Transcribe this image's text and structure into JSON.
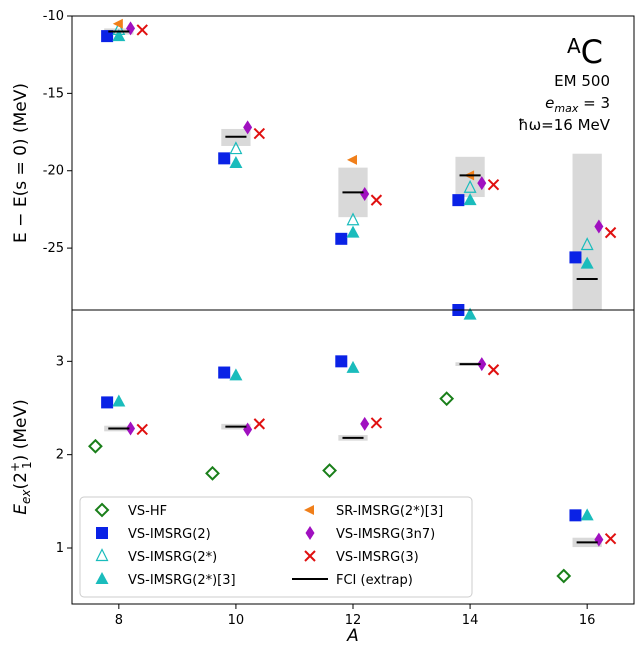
{
  "chart_data": [
    {
      "type": "scatter",
      "panel": "top",
      "ylabel": "E − E(s = 0) (MeV)",
      "ylim": [
        -29.0,
        -10.0
      ],
      "yticks": [
        -10,
        -15,
        -20,
        -25
      ],
      "yticklabels": [
        "-10",
        "-15",
        "-20",
        "-25"
      ],
      "annotation": {
        "nucleus_sup": "A",
        "nucleus": "C",
        "interaction": "EM 500",
        "emax_var": "e",
        "emax_sub": "max",
        "emax_val": " = 3",
        "homega": "ħω=16 MeV"
      },
      "series": [
        {
          "name": "VS-IMSRG(2)",
          "x": [
            7.8,
            9.8,
            11.8,
            13.8,
            15.8
          ],
          "y": [
            -11.3,
            -19.2,
            -24.4,
            -21.9,
            -25.6
          ]
        },
        {
          "name": "VS-IMSRG(2*)",
          "x": [
            8.0,
            10.0,
            12.0,
            14.0,
            16.0
          ],
          "y": [
            -10.9,
            -18.6,
            -23.2,
            -21.1,
            -24.8
          ]
        },
        {
          "name": "VS-IMSRG(2*)[3]",
          "x": [
            8.0,
            10.0,
            12.0,
            14.0,
            16.0
          ],
          "y": [
            -11.3,
            -19.5,
            -24.0,
            -21.9,
            -26.0
          ]
        },
        {
          "name": "SR-IMSRG(2*)[3]",
          "x": [
            8.0,
            12.0,
            14.0
          ],
          "y": [
            -10.5,
            -19.3,
            -20.3
          ]
        },
        {
          "name": "VS-IMSRG(3n7)",
          "x": [
            8.2,
            10.2,
            12.2,
            14.2,
            16.2
          ],
          "y": [
            -10.8,
            -17.2,
            -21.5,
            -20.8,
            -23.6
          ]
        },
        {
          "name": "VS-IMSRG(3)",
          "x": [
            8.4,
            10.4,
            12.4,
            14.4,
            16.4
          ],
          "y": [
            -10.9,
            -17.6,
            -21.9,
            -20.9,
            -24.0
          ]
        },
        {
          "name": "FCI (extrap)",
          "x": [
            8,
            10,
            12,
            14,
            16
          ],
          "y": [
            -11.0,
            -17.8,
            -21.4,
            -20.3,
            -27.0
          ],
          "band_low": [
            -11.2,
            -18.4,
            -23.0,
            -21.7,
            -29.0
          ],
          "band_high": [
            -10.8,
            -17.3,
            -19.8,
            -19.1,
            -18.9
          ]
        }
      ]
    },
    {
      "type": "scatter",
      "panel": "bottom",
      "xlabel": "A",
      "ylabel_main": "E",
      "ylabel_sub": "ex",
      "ylabel_mid": "(2",
      "ylabel_sup": "+",
      "ylabel_sub2": "1",
      "ylabel_tail": ") (MeV)",
      "xlim": [
        7.2,
        16.8
      ],
      "xticks": [
        8,
        10,
        12,
        14,
        16
      ],
      "xticklabels": [
        "8",
        "10",
        "12",
        "14",
        "16"
      ],
      "ylim": [
        0.4,
        3.55
      ],
      "yticks": [
        1,
        2,
        3
      ],
      "yticklabels": [
        "1",
        "2",
        "3"
      ],
      "series": [
        {
          "name": "VS-HF",
          "x": [
            7.6,
            9.6,
            11.6,
            13.6,
            15.6
          ],
          "y": [
            2.09,
            1.8,
            1.83,
            2.6,
            0.7
          ]
        },
        {
          "name": "VS-IMSRG(2)",
          "x": [
            7.8,
            9.8,
            11.8,
            13.8,
            15.8
          ],
          "y": [
            2.56,
            2.88,
            3.0,
            3.55,
            1.35
          ]
        },
        {
          "name": "VS-IMSRG(2*)[3]",
          "x": [
            8.0,
            10.0,
            12.0,
            14.0,
            16.0
          ],
          "y": [
            2.57,
            2.85,
            2.93,
            3.5,
            1.35
          ]
        },
        {
          "name": "VS-IMSRG(3n7)",
          "x": [
            8.2,
            10.2,
            12.2,
            14.2,
            16.2
          ],
          "y": [
            2.28,
            2.27,
            2.33,
            2.97,
            1.09
          ]
        },
        {
          "name": "VS-IMSRG(3)",
          "x": [
            8.4,
            10.4,
            12.4,
            14.4,
            16.4
          ],
          "y": [
            2.27,
            2.33,
            2.34,
            2.91,
            1.1
          ]
        },
        {
          "name": "FCI (extrap)",
          "x": [
            8,
            10,
            12,
            14,
            16
          ],
          "y": [
            2.28,
            2.3,
            2.18,
            2.97,
            1.06
          ],
          "band_low": [
            2.25,
            2.27,
            2.15,
            2.95,
            1.01
          ],
          "band_high": [
            2.31,
            2.33,
            2.21,
            2.99,
            1.11
          ]
        }
      ]
    }
  ],
  "legend": {
    "placement": "lower-left",
    "entries": [
      {
        "label": "VS-HF",
        "marker": "diamond-open",
        "color": "#1a7f1a"
      },
      {
        "label": "VS-IMSRG(2)",
        "marker": "square",
        "color": "#0a22e6"
      },
      {
        "label": "VS-IMSRG(2*)",
        "marker": "triangle-open",
        "color": "#1abcbc"
      },
      {
        "label": "VS-IMSRG(2*)[3]",
        "marker": "triangle",
        "color": "#1abcbc"
      },
      {
        "label": "SR-IMSRG(2*)[3]",
        "marker": "triangle-left",
        "color": "#f07f1a"
      },
      {
        "label": "VS-IMSRG(3n7)",
        "marker": "diamond",
        "color": "#a010c0"
      },
      {
        "label": "VS-IMSRG(3)",
        "marker": "x",
        "color": "#e01010"
      },
      {
        "label": "FCI (extrap)",
        "marker": "line",
        "color": "#000000"
      }
    ]
  },
  "colors": {
    "VS-HF": "#1a7f1a",
    "VS-IMSRG(2)": "#0a22e6",
    "VS-IMSRG(2*)": "#1abcbc",
    "VS-IMSRG(2*)[3]": "#1abcbc",
    "SR-IMSRG(2*)[3]": "#f07f1a",
    "VS-IMSRG(3n7)": "#a010c0",
    "VS-IMSRG(3)": "#e01010",
    "FCI (extrap)": "#000000",
    "band": "#d9d9d9"
  }
}
